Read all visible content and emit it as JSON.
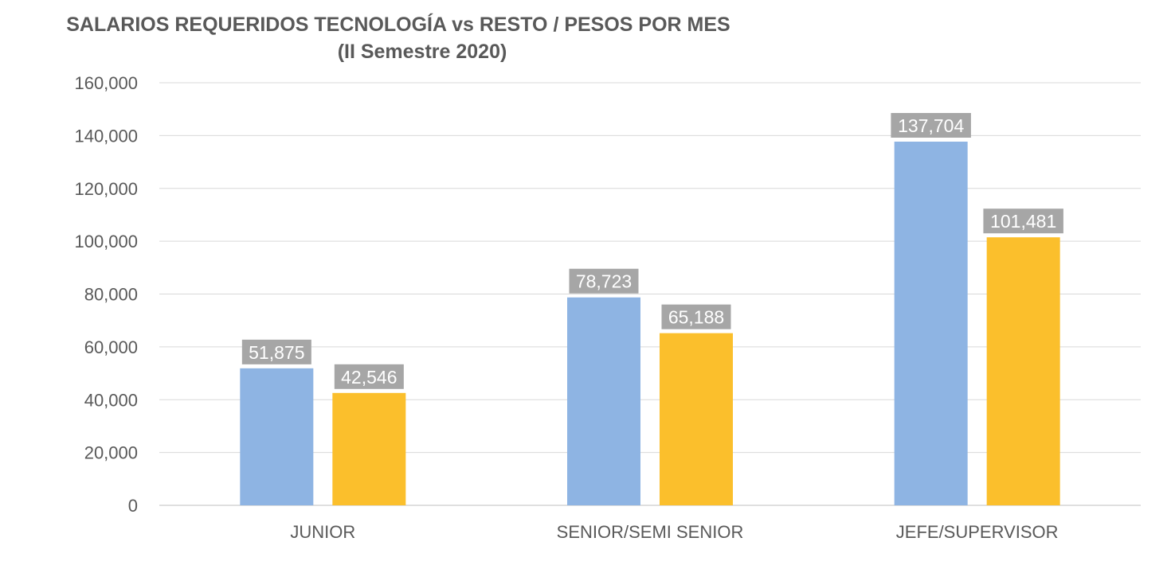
{
  "chart_data": {
    "type": "bar",
    "title": "SALARIOS REQUERIDOS TECNOLOGÍA vs RESTO / PESOS POR MES",
    "subtitle": "(II Semestre 2020)",
    "categories": [
      "JUNIOR",
      "SENIOR/SEMI SENIOR",
      "JEFE/SUPERVISOR"
    ],
    "series": [
      {
        "values": [
          51875,
          78723,
          137704
        ],
        "color": "#8EB4E3",
        "labels": [
          "51,875",
          "78,723",
          "137,704"
        ]
      },
      {
        "values": [
          42546,
          65188,
          101481
        ],
        "color": "#FBBF2C",
        "labels": [
          "42,546",
          "65,188",
          "101,481"
        ]
      }
    ],
    "ylim": [
      0,
      160000
    ],
    "yticks": [
      0,
      20000,
      40000,
      60000,
      80000,
      100000,
      120000,
      140000,
      160000
    ],
    "ytick_labels": [
      "0",
      "20,000",
      "40,000",
      "60,000",
      "80,000",
      "100,000",
      "120,000",
      "140,000",
      "160,000"
    ],
    "grid": true,
    "legend": "none",
    "label_bg_color": "#A6A6A6"
  }
}
